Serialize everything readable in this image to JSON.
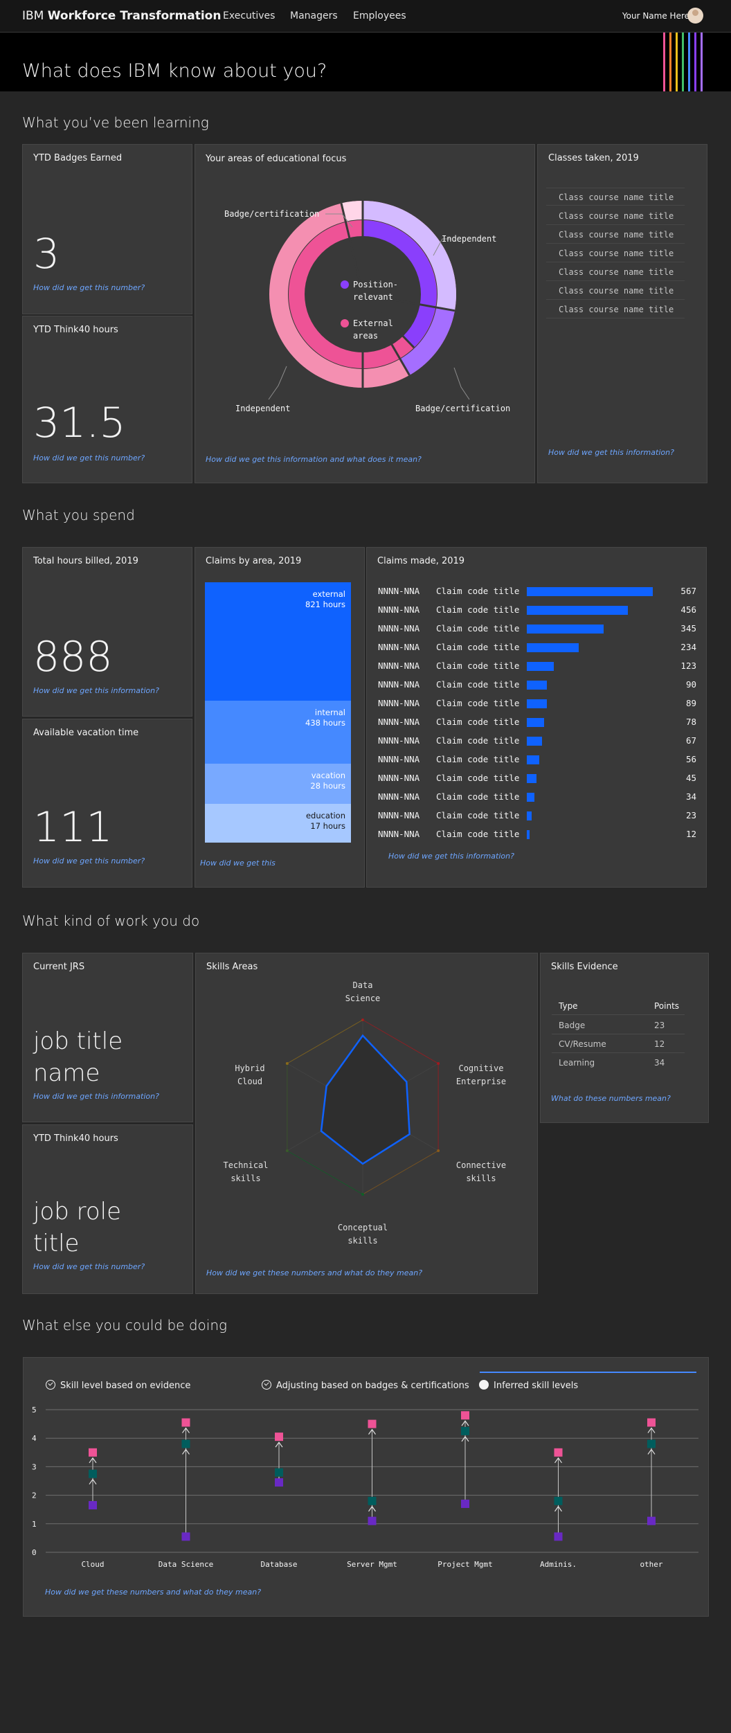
{
  "nav": {
    "brand_prefix": "IBM",
    "brand_name": "Workforce Transformation",
    "links": [
      "Executives",
      "Managers",
      "Employees"
    ],
    "user_name": "Your Name Here"
  },
  "hero": {
    "title": "What does IBM know about you?",
    "stripe_colors": [
      "#ee5396",
      "#ff832b",
      "#f1c21b",
      "#42be65",
      "#4589ff",
      "#8a3ffc",
      "#a56eff"
    ]
  },
  "learning": {
    "section_title": "What you’ve been learning",
    "badges": {
      "title": "YTD Badges Earned",
      "value": "3",
      "help": "How did we get this number?"
    },
    "think40": {
      "title": "YTD Think40 hours",
      "value": "31.5",
      "help": "How did we get this number?"
    },
    "focus": {
      "title": "Your areas of educational focus",
      "help": "How did we get this information and what does it mean?",
      "legend": [
        {
          "label": "Position-\nrelevant",
          "line1": "Position-",
          "line2": "relevant",
          "color": "#8a3ffc"
        },
        {
          "label": "External\nareas",
          "line1": "External",
          "line2": "areas",
          "color": "#ee5396"
        }
      ],
      "outer_labels": {
        "top_left": "Badge/certification",
        "top_right": "Independent",
        "bottom_left": "Independent",
        "bottom_right": "Badge/certification"
      }
    },
    "classes": {
      "title": "Classes taken, 2019",
      "items": [
        "Class course name title",
        "Class course name title",
        "Class course name title",
        "Class course name title",
        "Class course name title",
        "Class course name title",
        "Class course name title"
      ],
      "help": "How did we get this information?"
    }
  },
  "spend": {
    "section_title": "What you spend",
    "hours_billed": {
      "title": "Total hours billed, 2019",
      "value": "888",
      "help": "How did we get this information?"
    },
    "vacation": {
      "title": "Available vacation time",
      "value": "111",
      "help": "How did we get this number?"
    },
    "claims_area": {
      "title": "Claims by area, 2019",
      "help": "How did we get this",
      "areas": [
        {
          "name": "external",
          "hours": "821 hours",
          "value": 821,
          "color": "#0f62fe"
        },
        {
          "name": "internal",
          "hours": "438 hours",
          "value": 438,
          "color": "#4589ff"
        },
        {
          "name": "vacation",
          "hours": "28 hours",
          "value": 28,
          "color": "#78a9ff"
        },
        {
          "name": "education",
          "hours": "17 hours",
          "value": 17,
          "color": "#a6c8ff"
        }
      ]
    },
    "claims_made": {
      "title": "Claims made, 2019",
      "help": "How did we get this information?",
      "rows": [
        {
          "code": "NNNN-NNA",
          "title": "Claim code title",
          "value": 567
        },
        {
          "code": "NNNN-NNA",
          "title": "Claim code title",
          "value": 456
        },
        {
          "code": "NNNN-NNA",
          "title": "Claim code title",
          "value": 345
        },
        {
          "code": "NNNN-NNA",
          "title": "Claim code title",
          "value": 234
        },
        {
          "code": "NNNN-NNA",
          "title": "Claim code title",
          "value": 123
        },
        {
          "code": "NNNN-NNA",
          "title": "Claim code title",
          "value": 90
        },
        {
          "code": "NNNN-NNA",
          "title": "Claim code title",
          "value": 89
        },
        {
          "code": "NNNN-NNA",
          "title": "Claim code title",
          "value": 78
        },
        {
          "code": "NNNN-NNA",
          "title": "Claim code title",
          "value": 67
        },
        {
          "code": "NNNN-NNA",
          "title": "Claim code title",
          "value": 56
        },
        {
          "code": "NNNN-NNA",
          "title": "Claim code title",
          "value": 45
        },
        {
          "code": "NNNN-NNA",
          "title": "Claim code title",
          "value": 34
        },
        {
          "code": "NNNN-NNA",
          "title": "Claim code title",
          "value": 23
        },
        {
          "code": "NNNN-NNA",
          "title": "Claim code title",
          "value": 12
        }
      ]
    }
  },
  "work": {
    "section_title": "What kind of work you do",
    "jrs": {
      "title": "Current JRS",
      "value": "job title name",
      "help": "How did we get this information?"
    },
    "think40": {
      "title": "YTD Think40 hours",
      "value": "job role title",
      "help": "How did we get this number?"
    },
    "skills_areas": {
      "title": "Skills Areas",
      "help": "How did we get these numbers and what do they mean?",
      "axes": [
        {
          "line1": "Data",
          "line2": "Science"
        },
        {
          "line1": "Cognitive",
          "line2": "Enterprise"
        },
        {
          "line1": "Connective",
          "line2": "skills"
        },
        {
          "line1": "Conceptual",
          "line2": "skills"
        },
        {
          "line1": "Technical",
          "line2": "skills"
        },
        {
          "line1": "Hybrid",
          "line2": "Cloud"
        }
      ],
      "levels": [
        0.82,
        0.58,
        0.62,
        0.65,
        0.55,
        0.48
      ]
    },
    "evidence": {
      "title": "Skills Evidence",
      "headers": [
        "Type",
        "Points"
      ],
      "rows": [
        [
          "Badge",
          "23"
        ],
        [
          "CV/Resume",
          "12"
        ],
        [
          "Learning",
          "34"
        ]
      ],
      "help": "What do these numbers mean?"
    }
  },
  "else": {
    "section_title": "What else you could be doing",
    "legend": [
      "Skill level based on evidence",
      "Adjusting based on badges & certifications",
      "Inferred skill levels"
    ],
    "help": "How did we get these numbers and what do they mean?",
    "chart_data": {
      "type": "scatter",
      "categories": [
        "Cloud",
        "Data Science",
        "Database",
        "Server Mgmt",
        "Project Mgmt",
        "Adminis.",
        "other"
      ],
      "yticks": [
        "0",
        "1",
        "2",
        "3",
        "4",
        "5"
      ],
      "ylim": [
        0,
        5
      ],
      "series": [
        {
          "color": "#6929c4",
          "values": [
            1.65,
            0.55,
            2.45,
            1.1,
            1.7,
            0.55,
            1.1
          ]
        },
        {
          "color": "#005d5d",
          "values": [
            2.75,
            3.8,
            2.8,
            1.8,
            4.25,
            1.8,
            3.8
          ]
        },
        {
          "color": "#ee5396",
          "values": [
            3.5,
            4.55,
            4.05,
            4.5,
            4.8,
            3.5,
            4.55
          ]
        }
      ]
    }
  }
}
